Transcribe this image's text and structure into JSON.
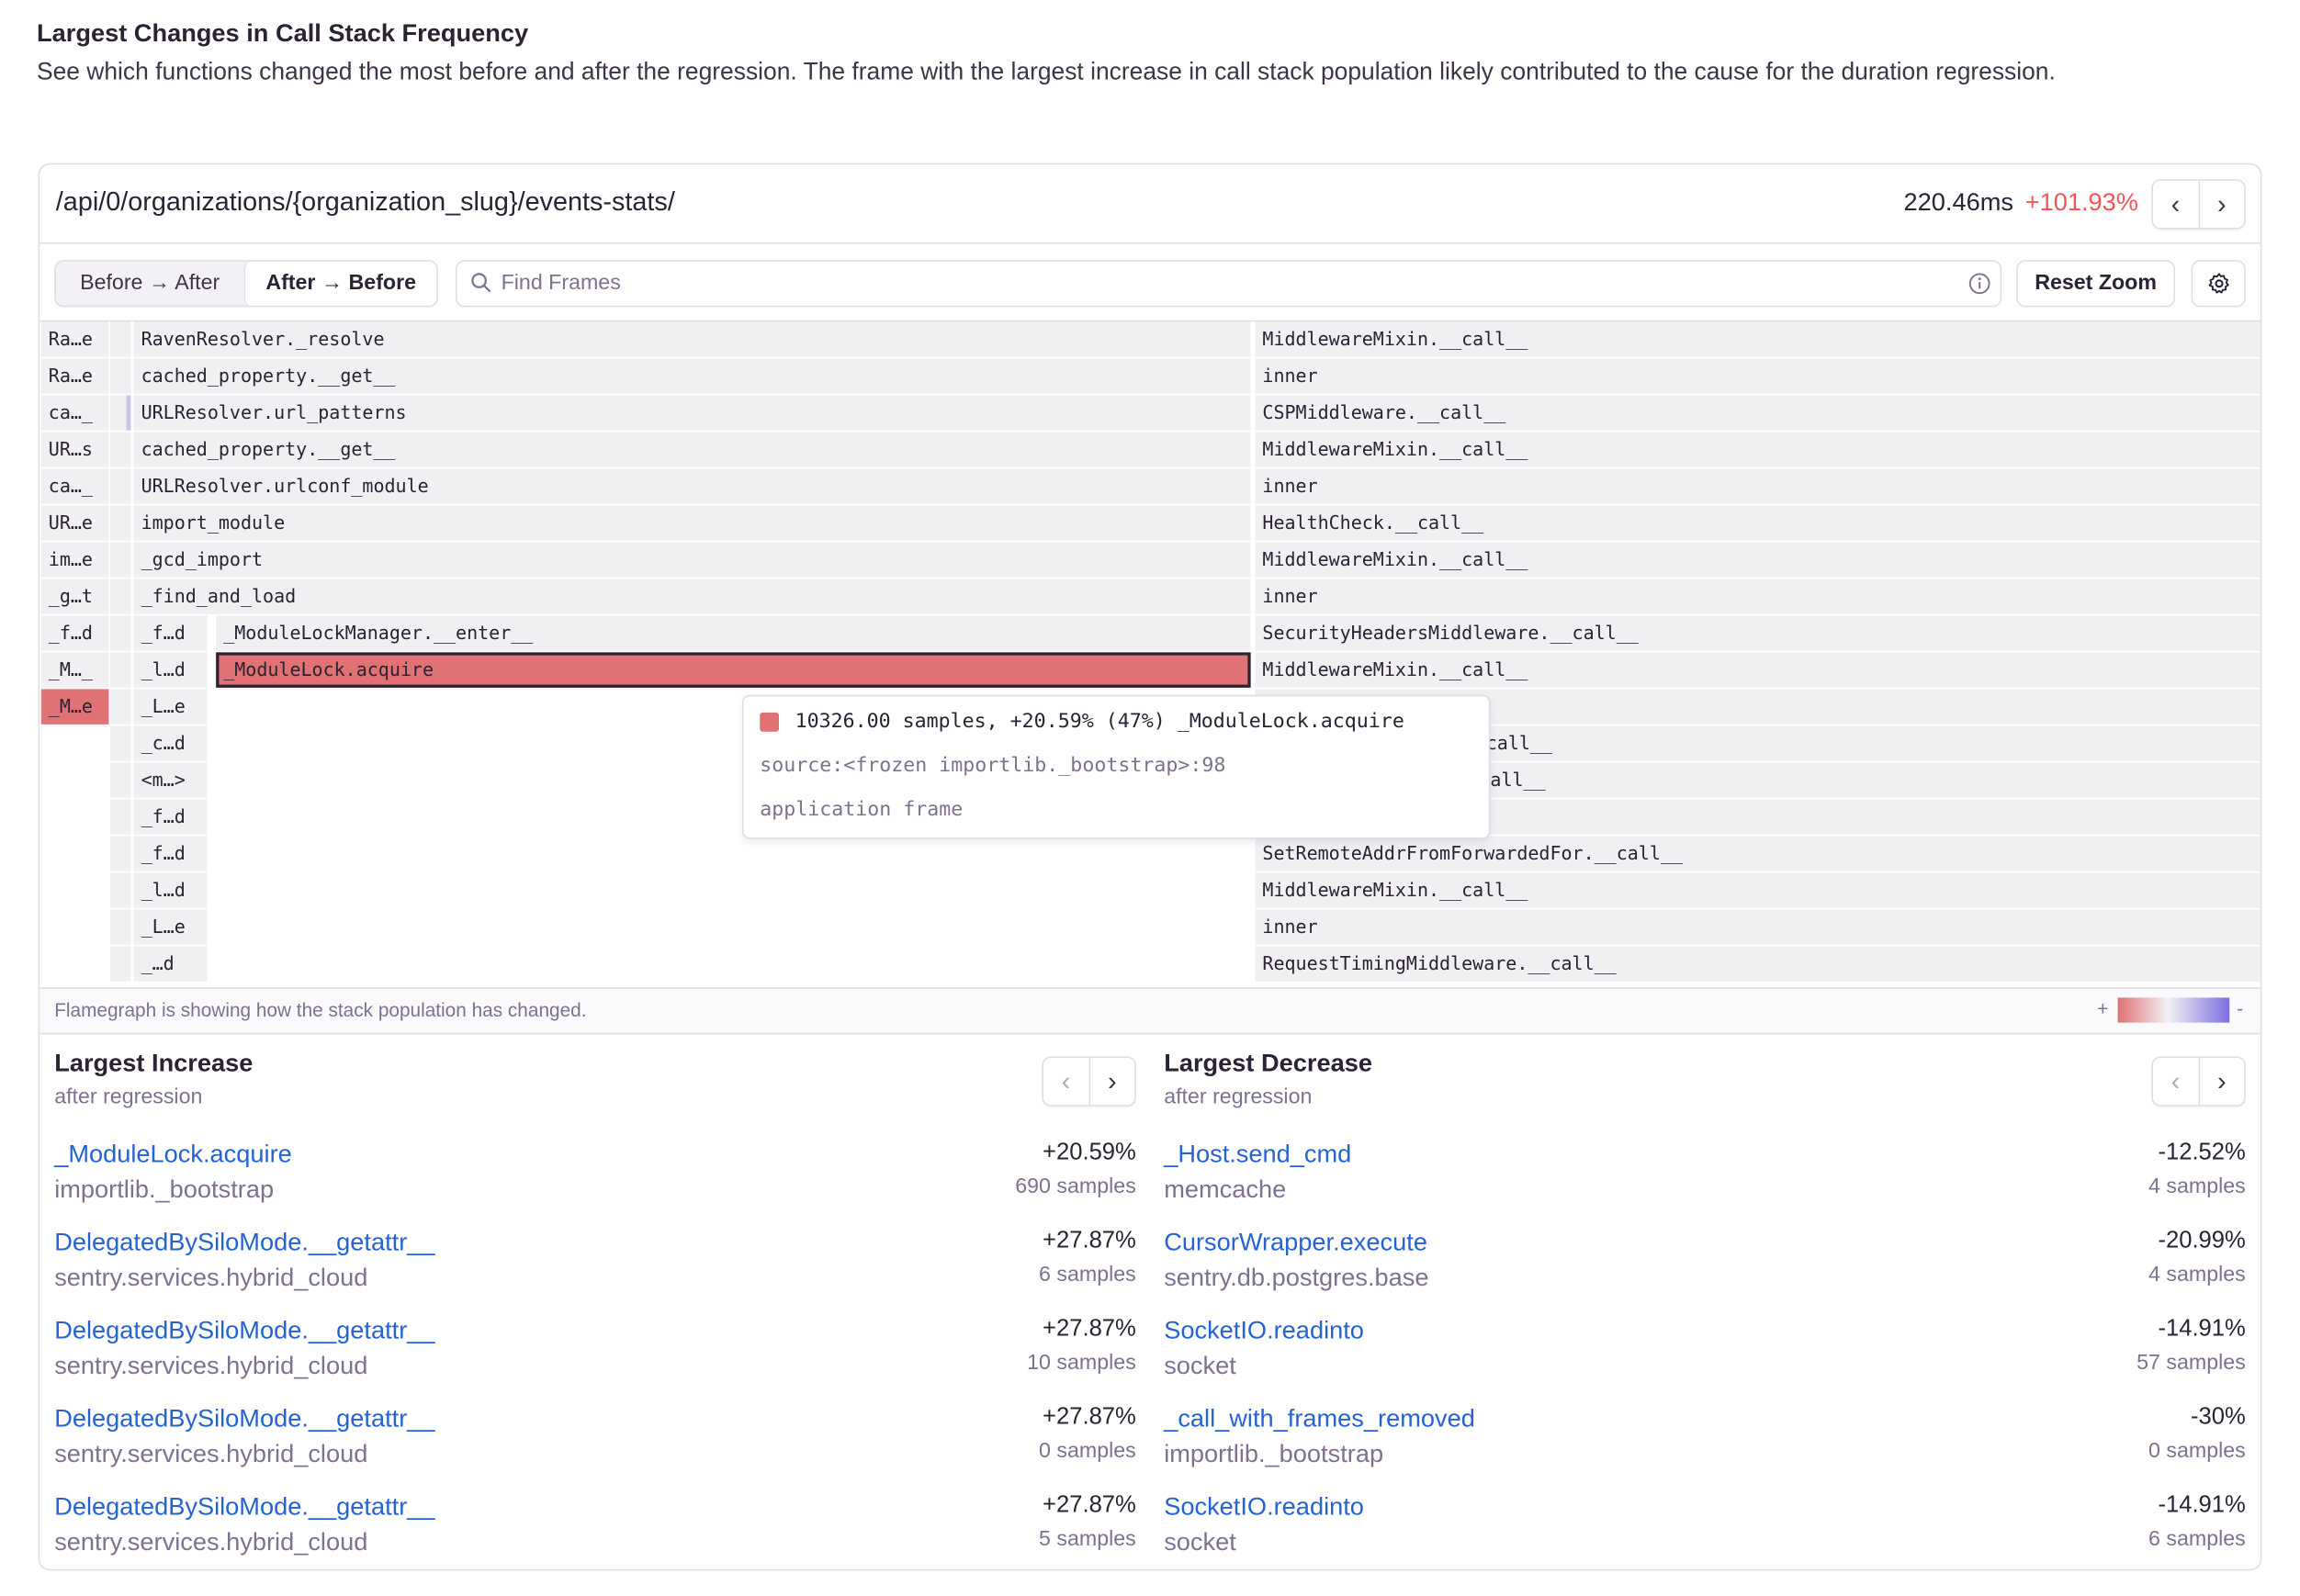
{
  "section": {
    "title": "Largest Changes in Call Stack Frequency",
    "description": "See which functions changed the most before and after the regression. The frame with the largest increase in call stack population likely contributed to the cause for the duration regression."
  },
  "header": {
    "transaction": "/api/0/organizations/{organization_slug}/events-stats/",
    "duration": "220.46ms",
    "change": "+101.93%",
    "prev": "‹",
    "next": "›"
  },
  "toolbar": {
    "before_after": "Before → After",
    "after_before": "After → Before",
    "search_placeholder": "Find Frames",
    "reset_zoom": "Reset Zoom"
  },
  "colors": {
    "increase": "#e07175",
    "decrease": "#7d6fe0",
    "link": "#2562d4",
    "positive_change": "#f55459"
  },
  "flamegraph": {
    "rows": [
      {
        "a": "Ra…e",
        "c": "RavenResolver._resolve",
        "d": "",
        "e": "MiddlewareMixin.__call__"
      },
      {
        "a": "Ra…e",
        "c": "cached_property.__get__",
        "d": "",
        "e": "inner"
      },
      {
        "a": "ca…_",
        "c": "URLResolver.url_patterns",
        "d": "",
        "e": "CSPMiddleware.__call__"
      },
      {
        "a": "UR…s",
        "c": "cached_property.__get__",
        "d": "",
        "e": "MiddlewareMixin.__call__"
      },
      {
        "a": "ca…_",
        "c": "URLResolver.urlconf_module",
        "d": "",
        "e": "inner"
      },
      {
        "a": "UR…e",
        "c": "import_module",
        "d": "",
        "e": "HealthCheck.__call__"
      },
      {
        "a": "im…e",
        "c": "_gcd_import",
        "d": "",
        "e": "MiddlewareMixin.__call__"
      },
      {
        "a": "_g…t",
        "c": "_find_and_load",
        "d": "",
        "e": "inner"
      },
      {
        "a": "_f…d",
        "c": "_f…d",
        "d": "_ModuleLockManager.__enter__",
        "e": "SecurityHeadersMiddleware.__call__"
      },
      {
        "a": "_M…_",
        "c": "_l…d",
        "d": "_ModuleLock.acquire",
        "e": "MiddlewareMixin.__call__"
      },
      {
        "a": "_M…e",
        "c": "_L…e",
        "d": "",
        "e": ""
      },
      {
        "a": "",
        "c": "_c…d",
        "d": "",
        "e": "e.__call__"
      },
      {
        "a": "",
        "c": "<m…>",
        "d": "",
        "e": "all__"
      },
      {
        "a": "",
        "c": "_f…d",
        "d": "",
        "e": ""
      },
      {
        "a": "",
        "c": "_f…d",
        "d": "",
        "e": "SetRemoteAddrFromForwardedFor.__call__"
      },
      {
        "a": "",
        "c": "_l…d",
        "d": "",
        "e": "MiddlewareMixin.__call__"
      },
      {
        "a": "",
        "c": "_L…e",
        "d": "",
        "e": "inner"
      },
      {
        "a": "",
        "c": "_…d",
        "d": "",
        "e": "RequestTimingMiddleware.__call__"
      }
    ],
    "tooltip": {
      "summary": "10326.00 samples, +20.59% (47%) _ModuleLock.acquire",
      "source": "source:<frozen importlib._bootstrap>:98",
      "kind": "application frame"
    },
    "footer": "Flamegraph is showing how the stack population has changed.",
    "legend_plus": "+",
    "legend_minus": "-"
  },
  "increase": {
    "title": "Largest Increase",
    "subtitle": "after regression",
    "items": [
      {
        "name": "_ModuleLock.acquire",
        "module": "importlib._bootstrap",
        "change": "+20.59%",
        "samples": "690 samples"
      },
      {
        "name": "DelegatedBySiloMode.__getattr__",
        "module": "sentry.services.hybrid_cloud",
        "change": "+27.87%",
        "samples": "6 samples"
      },
      {
        "name": "DelegatedBySiloMode.__getattr__",
        "module": "sentry.services.hybrid_cloud",
        "change": "+27.87%",
        "samples": "10 samples"
      },
      {
        "name": "DelegatedBySiloMode.__getattr__",
        "module": "sentry.services.hybrid_cloud",
        "change": "+27.87%",
        "samples": "0 samples"
      },
      {
        "name": "DelegatedBySiloMode.__getattr__",
        "module": "sentry.services.hybrid_cloud",
        "change": "+27.87%",
        "samples": "5 samples"
      }
    ]
  },
  "decrease": {
    "title": "Largest Decrease",
    "subtitle": "after regression",
    "items": [
      {
        "name": "_Host.send_cmd",
        "module": "memcache",
        "change": "-12.52%",
        "samples": "4 samples"
      },
      {
        "name": "CursorWrapper.execute",
        "module": "sentry.db.postgres.base",
        "change": "-20.99%",
        "samples": "4 samples"
      },
      {
        "name": "SocketIO.readinto",
        "module": "socket",
        "change": "-14.91%",
        "samples": "57 samples"
      },
      {
        "name": "_call_with_frames_removed",
        "module": "importlib._bootstrap",
        "change": "-30%",
        "samples": "0 samples"
      },
      {
        "name": "SocketIO.readinto",
        "module": "socket",
        "change": "-14.91%",
        "samples": "6 samples"
      }
    ]
  }
}
